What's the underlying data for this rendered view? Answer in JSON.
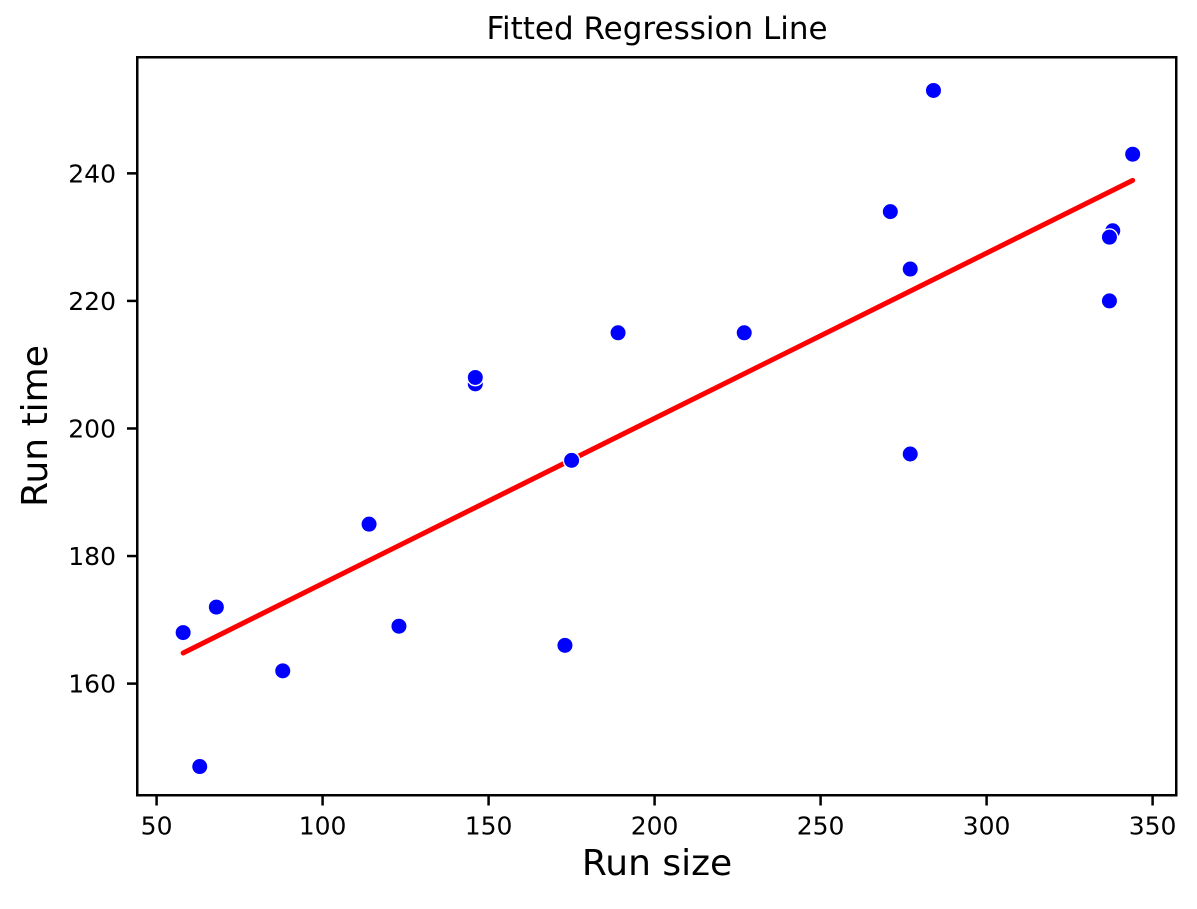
{
  "chart_data": {
    "type": "scatter",
    "title": "Fitted Regression Line",
    "xlabel": "Run size",
    "ylabel": "Run time",
    "xlim": [
      43.8,
      357.5
    ],
    "ylim": [
      142.3,
      258.4
    ],
    "xticks": [
      50,
      100,
      150,
      200,
      250,
      300,
      350
    ],
    "yticks": [
      160,
      180,
      200,
      220,
      240
    ],
    "grid": false,
    "legend_position": "none",
    "colors": {
      "marker_fill": "#0000ff",
      "marker_edge": "#ffffff",
      "regression_line": "#ff0000",
      "axis": "#000000",
      "text": "#000000",
      "background": "#ffffff"
    },
    "series": [
      {
        "name": "observations",
        "type": "scatter",
        "color": "#0000ff",
        "points": [
          [
            175,
            195
          ],
          [
            189,
            215
          ],
          [
            344,
            243
          ],
          [
            88,
            162
          ],
          [
            114,
            185
          ],
          [
            338,
            231
          ],
          [
            271,
            234
          ],
          [
            173,
            166
          ],
          [
            284,
            253
          ],
          [
            277,
            196
          ],
          [
            337,
            220
          ],
          [
            58,
            168
          ],
          [
            146,
            207
          ],
          [
            277,
            225
          ],
          [
            123,
            169
          ],
          [
            227,
            215
          ],
          [
            63,
            147
          ],
          [
            337,
            230
          ],
          [
            146,
            208
          ],
          [
            68,
            172
          ]
        ]
      },
      {
        "name": "fitted-regression-line",
        "type": "line",
        "color": "#ff0000",
        "points": [
          [
            58,
            164.8
          ],
          [
            344,
            238.9
          ]
        ]
      }
    ]
  }
}
